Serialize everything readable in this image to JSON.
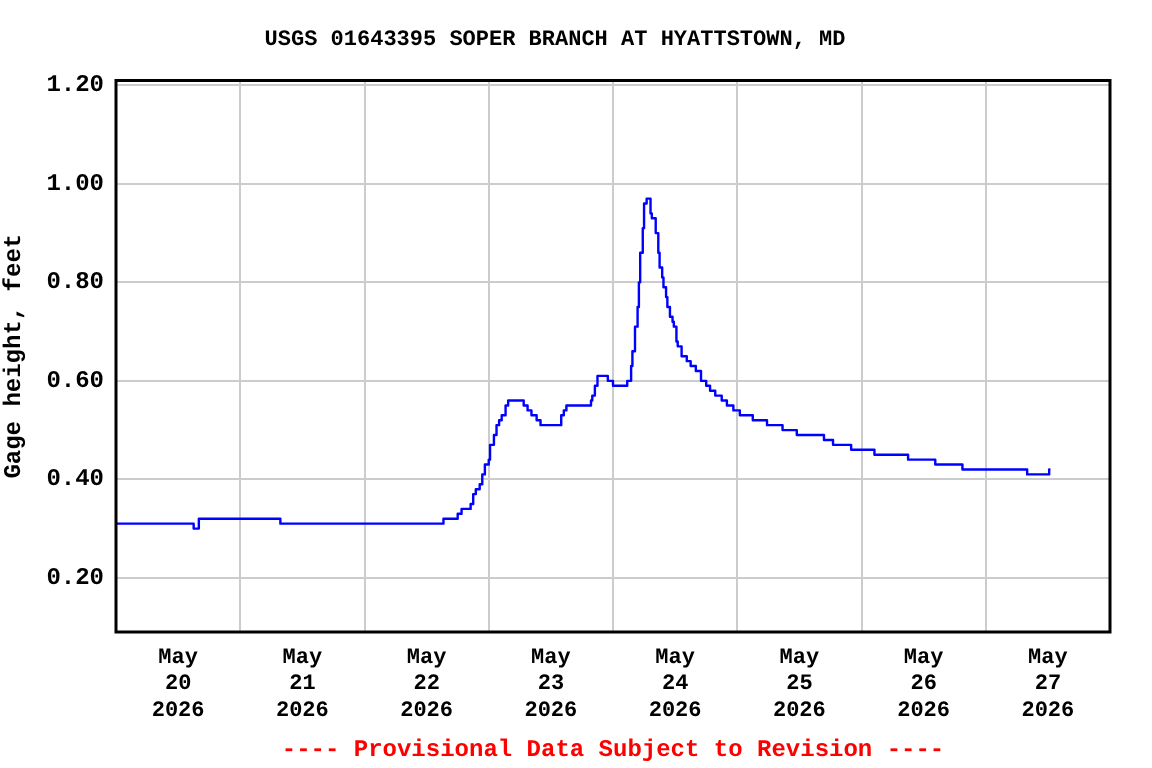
{
  "chart_data": {
    "type": "step",
    "title": "USGS 01643395 SOPER BRANCH AT HYATTSTOWN, MD",
    "ylabel": "Gage height, feet",
    "annotations": [
      "---- Provisional Data Subject to Revision ----"
    ],
    "x": [
      "2026-05-20T00:00",
      "2026-05-20T15:00",
      "2026-05-20T16:00",
      "2026-05-21T07:45",
      "2026-05-22T15:15",
      "2026-05-22T18:00",
      "2026-05-22T18:45",
      "2026-05-22T20:30",
      "2026-05-22T21:00",
      "2026-05-22T21:30",
      "2026-05-22T22:15",
      "2026-05-22T22:45",
      "2026-05-22T23:15",
      "2026-05-23T00:00",
      "2026-05-23T00:15",
      "2026-05-23T01:00",
      "2026-05-23T01:30",
      "2026-05-23T02:00",
      "2026-05-23T02:30",
      "2026-05-23T03:15",
      "2026-05-23T03:45",
      "2026-05-23T06:45",
      "2026-05-23T07:30",
      "2026-05-23T08:15",
      "2026-05-23T09:15",
      "2026-05-23T10:00",
      "2026-05-23T14:00",
      "2026-05-23T14:30",
      "2026-05-23T15:00",
      "2026-05-23T19:45",
      "2026-05-23T20:00",
      "2026-05-23T20:30",
      "2026-05-23T21:00",
      "2026-05-23T23:00",
      "2026-05-24T00:00",
      "2026-05-24T02:45",
      "2026-05-24T03:30",
      "2026-05-24T03:45",
      "2026-05-24T04:15",
      "2026-05-24T04:45",
      "2026-05-24T05:00",
      "2026-05-24T05:15",
      "2026-05-24T05:45",
      "2026-05-24T06:00",
      "2026-05-24T06:30",
      "2026-05-24T07:15",
      "2026-05-24T07:30",
      "2026-05-24T08:15",
      "2026-05-24T08:45",
      "2026-05-24T09:00",
      "2026-05-24T09:30",
      "2026-05-24T09:45",
      "2026-05-24T10:15",
      "2026-05-24T10:30",
      "2026-05-24T11:00",
      "2026-05-24T11:30",
      "2026-05-24T11:45",
      "2026-05-24T12:15",
      "2026-05-24T12:30",
      "2026-05-24T13:15",
      "2026-05-24T14:15",
      "2026-05-24T15:00",
      "2026-05-24T16:00",
      "2026-05-24T17:00",
      "2026-05-24T18:00",
      "2026-05-24T18:45",
      "2026-05-24T19:45",
      "2026-05-24T21:00",
      "2026-05-24T22:00",
      "2026-05-24T23:15",
      "2026-05-25T00:30",
      "2026-05-25T03:00",
      "2026-05-25T05:45",
      "2026-05-25T08:45",
      "2026-05-25T11:30",
      "2026-05-25T16:45",
      "2026-05-25T18:30",
      "2026-05-25T22:00",
      "2026-05-26T02:30",
      "2026-05-26T09:00",
      "2026-05-26T14:15",
      "2026-05-26T19:30",
      "2026-05-27T08:00",
      "2026-05-27T12:15",
      "2026-05-27T12:30"
    ],
    "series": [
      {
        "color": "#0000ff",
        "values": [
          0.31,
          0.3,
          0.32,
          0.31,
          0.32,
          0.33,
          0.34,
          0.35,
          0.37,
          0.38,
          0.39,
          0.41,
          0.43,
          0.44,
          0.47,
          0.49,
          0.51,
          0.52,
          0.53,
          0.55,
          0.56,
          0.55,
          0.54,
          0.53,
          0.52,
          0.51,
          0.53,
          0.54,
          0.55,
          0.56,
          0.57,
          0.59,
          0.61,
          0.6,
          0.59,
          0.6,
          0.63,
          0.66,
          0.71,
          0.75,
          0.8,
          0.86,
          0.91,
          0.96,
          0.97,
          0.94,
          0.93,
          0.9,
          0.86,
          0.83,
          0.81,
          0.79,
          0.77,
          0.75,
          0.73,
          0.72,
          0.71,
          0.68,
          0.67,
          0.65,
          0.64,
          0.63,
          0.62,
          0.6,
          0.59,
          0.58,
          0.57,
          0.56,
          0.55,
          0.54,
          0.53,
          0.52,
          0.51,
          0.5,
          0.49,
          0.48,
          0.47,
          0.46,
          0.45,
          0.44,
          0.43,
          0.42,
          0.41,
          0.42,
          0.42
        ]
      }
    ],
    "xlim": [
      "2026-05-20T00:00",
      "2026-05-28T00:00"
    ],
    "xticks": [
      {
        "value": "2026-05-20T12:00",
        "label": "May\n20\n2026"
      },
      {
        "value": "2026-05-21T00:00",
        "label": null
      },
      {
        "value": "2026-05-21T12:00",
        "label": "May\n21\n2026"
      },
      {
        "value": "2026-05-22T00:00",
        "label": null
      },
      {
        "value": "2026-05-22T12:00",
        "label": "May\n22\n2026"
      },
      {
        "value": "2026-05-23T00:00",
        "label": null
      },
      {
        "value": "2026-05-23T12:00",
        "label": "May\n23\n2026"
      },
      {
        "value": "2026-05-24T00:00",
        "label": null
      },
      {
        "value": "2026-05-24T12:00",
        "label": "May\n24\n2026"
      },
      {
        "value": "2026-05-25T00:00",
        "label": null
      },
      {
        "value": "2026-05-25T12:00",
        "label": "May\n25\n2026"
      },
      {
        "value": "2026-05-26T00:00",
        "label": null
      },
      {
        "value": "2026-05-26T12:00",
        "label": "May\n26\n2026"
      },
      {
        "value": "2026-05-27T00:00",
        "label": null
      },
      {
        "value": "2026-05-27T12:00",
        "label": "May\n27\n2026"
      }
    ],
    "ylim": [
      0.09,
      1.21
    ],
    "yticks": [
      {
        "value": 0.2,
        "label": "0.20"
      },
      {
        "value": 0.4,
        "label": "0.40"
      },
      {
        "value": 0.6,
        "label": "0.60"
      },
      {
        "value": 0.8,
        "label": "0.80"
      },
      {
        "value": 1.0,
        "label": "1.00"
      },
      {
        "value": 1.2,
        "label": "1.20"
      }
    ],
    "grid": true,
    "legend": false,
    "marker": "none",
    "line_style": "solid"
  }
}
